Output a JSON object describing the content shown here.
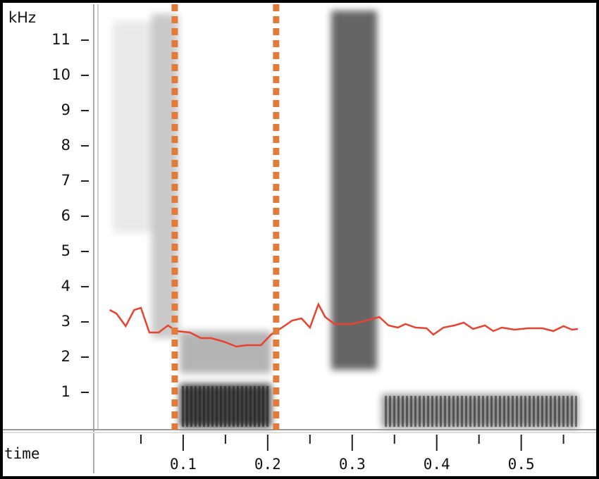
{
  "chart_data": {
    "type": "spectrogram",
    "y_label": "kHz",
    "x_label": "time",
    "xlim": [
      0,
      0.567
    ],
    "ylim": [
      0,
      12
    ],
    "xticks": [
      0.1,
      0.2,
      0.3,
      0.4,
      0.5
    ],
    "xminorticks": [
      0.05,
      0.15,
      0.25,
      0.35,
      0.45,
      0.55
    ],
    "yticks": [
      1,
      2,
      3,
      4,
      5,
      6,
      7,
      8,
      9,
      10,
      11
    ],
    "x": [
      0.013,
      0.021,
      0.032,
      0.042,
      0.05,
      0.06,
      0.071,
      0.082,
      0.092,
      0.108,
      0.121,
      0.133,
      0.148,
      0.163,
      0.175,
      0.192,
      0.204,
      0.217,
      0.229,
      0.24,
      0.25,
      0.26,
      0.268,
      0.279,
      0.3,
      0.317,
      0.332,
      0.343,
      0.354,
      0.363,
      0.375,
      0.388,
      0.396,
      0.408,
      0.421,
      0.432,
      0.443,
      0.457,
      0.467,
      0.477,
      0.492,
      0.508,
      0.525,
      0.538,
      0.55,
      0.56,
      0.567
    ],
    "series": [
      {
        "color": "#e8432e",
        "values": [
          3.34,
          3.24,
          2.88,
          3.34,
          3.4,
          2.7,
          2.7,
          2.9,
          2.74,
          2.7,
          2.54,
          2.54,
          2.44,
          2.3,
          2.34,
          2.34,
          2.64,
          2.84,
          3.04,
          3.1,
          2.84,
          3.5,
          3.14,
          2.94,
          2.94,
          3.04,
          3.14,
          2.9,
          2.84,
          2.94,
          2.84,
          2.82,
          2.64,
          2.84,
          2.9,
          2.98,
          2.8,
          2.9,
          2.74,
          2.84,
          2.78,
          2.82,
          2.82,
          2.74,
          2.88,
          2.78,
          2.8
        ]
      }
    ],
    "markers": {
      "color": "#e07b39",
      "x": [
        0.09,
        0.21
      ]
    }
  }
}
